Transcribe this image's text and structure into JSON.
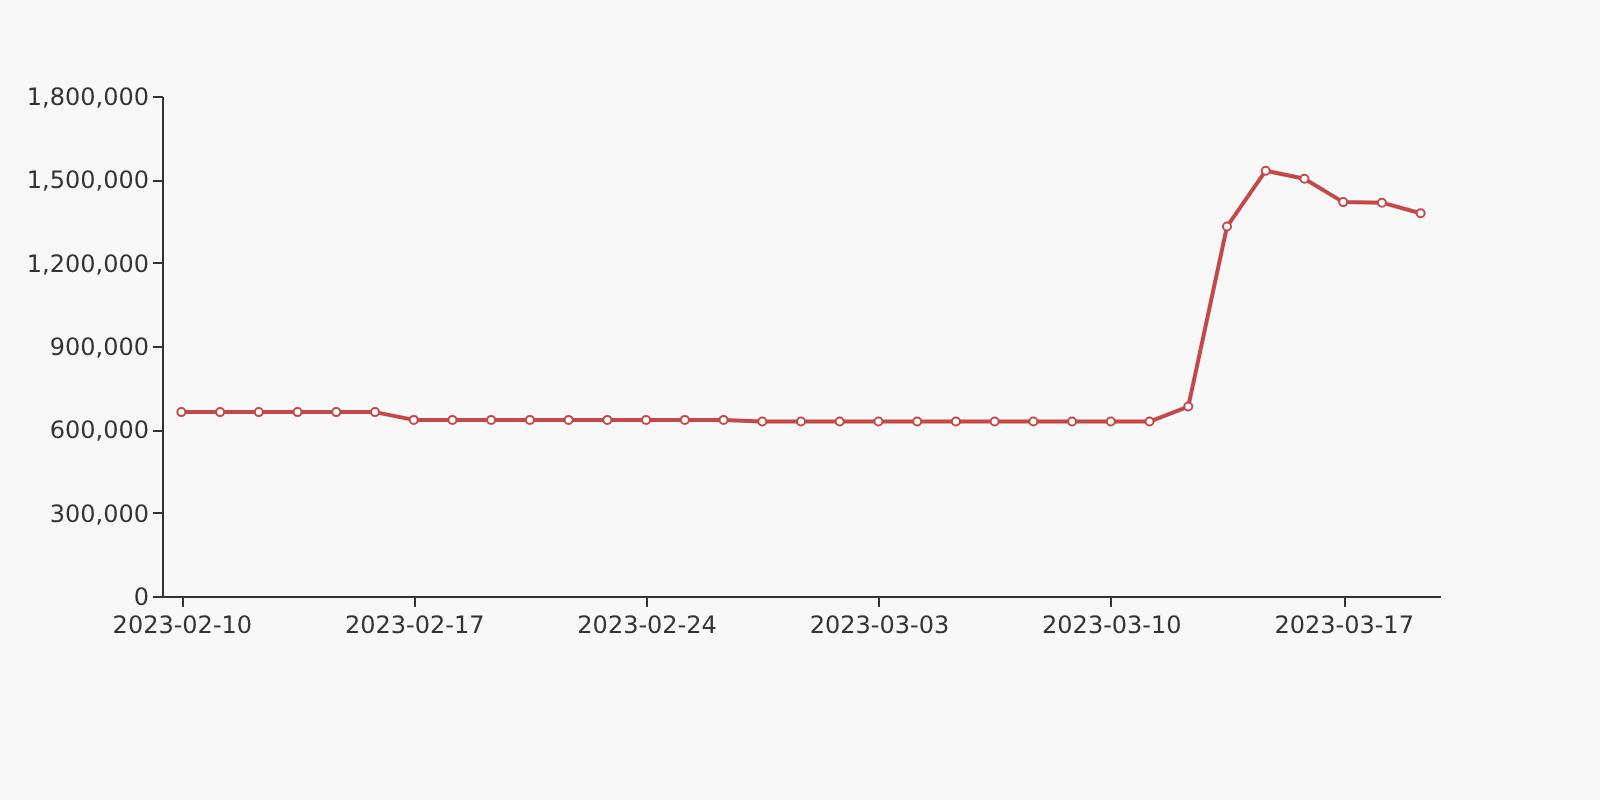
{
  "chart_data": {
    "type": "line",
    "categories": [
      "2023-02-10",
      null,
      null,
      null,
      null,
      null,
      "2023-02-17",
      null,
      null,
      null,
      null,
      null,
      "2023-02-24",
      null,
      null,
      null,
      null,
      null,
      "2023-03-03",
      null,
      null,
      null,
      null,
      null,
      "2023-03-10",
      null,
      null,
      null,
      null,
      null,
      "2023-03-17",
      null,
      null
    ],
    "series": [
      {
        "color": "#c4484a",
        "values": [
          662000,
          662000,
          662000,
          662000,
          662000,
          662000,
          634000,
          634000,
          634000,
          634000,
          634000,
          634000,
          634000,
          634000,
          634000,
          628000,
          628000,
          628000,
          628000,
          628000,
          628000,
          628000,
          628000,
          628000,
          628000,
          628000,
          682000,
          1330000,
          1531000,
          1502000,
          1418000,
          1416000,
          1378000
        ]
      }
    ],
    "ylim": [
      0,
      1800000
    ],
    "yticks": [
      0,
      {
        "value": 300000,
        "label": "300,000"
      },
      {
        "value": 600000,
        "label": "600,000"
      },
      {
        "value": 900000,
        "label": "900,000"
      },
      {
        "value": 1200000,
        "label": "1,200,000"
      },
      {
        "value": 1500000,
        "label": "1,500,000"
      },
      {
        "value": 1800000,
        "label": "1,800,000"
      }
    ],
    "grid": false,
    "marker": "circle",
    "line_style": "solid"
  }
}
